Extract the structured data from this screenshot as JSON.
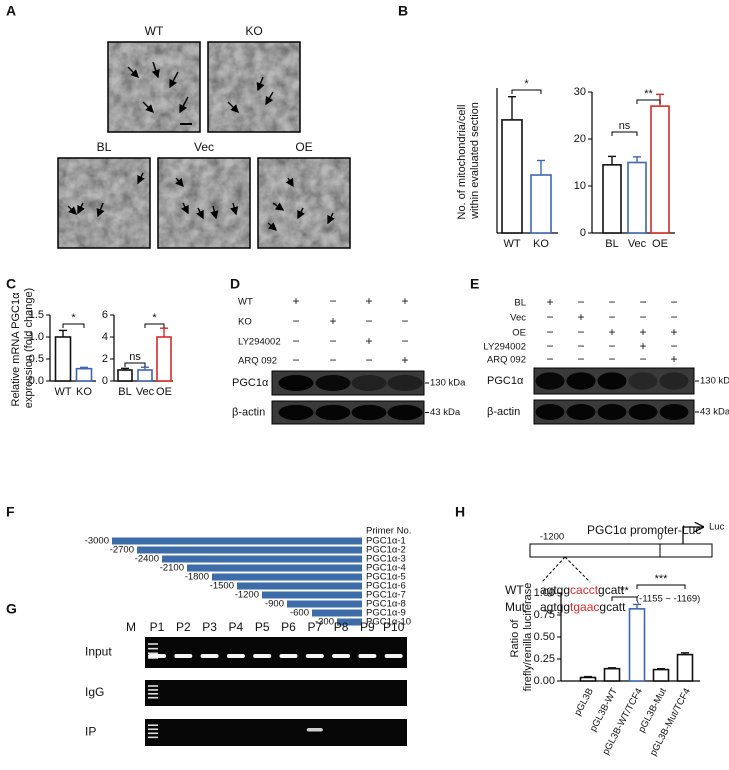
{
  "panel_labels": [
    "A",
    "B",
    "C",
    "D",
    "E",
    "F",
    "G",
    "H"
  ],
  "micrographs": {
    "labels": [
      "WT",
      "KO",
      "BL",
      "Vec",
      "OE"
    ]
  },
  "chart_data": [
    {
      "type": "bar",
      "ylabel": "No. of mitochondria/cell within evaluated section",
      "categories": [
        "WT",
        "KO"
      ],
      "values": [
        19.5,
        10
      ],
      "errors": [
        4,
        2.5
      ],
      "colors": [
        "#111111",
        "#3f67b1"
      ],
      "ylim": [
        0,
        25
      ],
      "annotations": [
        "*"
      ]
    },
    {
      "type": "bar",
      "categories": [
        "BL",
        "Vec",
        "OE"
      ],
      "values": [
        14.5,
        15,
        27
      ],
      "errors": [
        1.8,
        1.2,
        2.5
      ],
      "colors": [
        "#111111",
        "#3f67b1",
        "#d62b2b"
      ],
      "ylim": [
        0,
        30
      ],
      "yticks": [
        0,
        10,
        20,
        30
      ],
      "annotations": [
        "ns",
        "**"
      ]
    },
    {
      "type": "bar",
      "ylabel": "Relative mRNA PGC1α expression (fold change)",
      "categories": [
        "WT",
        "KO"
      ],
      "values": [
        1.0,
        0.28
      ],
      "errors": [
        0.15,
        0.03
      ],
      "colors": [
        "#111111",
        "#3f67b1"
      ],
      "ylim": [
        0,
        1.5
      ],
      "yticks": [
        {
          "value": 0,
          "label": "0.0"
        },
        0.5,
        {
          "value": 1,
          "label": "1.0"
        },
        1.5
      ],
      "annotations": [
        "*"
      ]
    },
    {
      "type": "bar",
      "categories": [
        "BL",
        "Vec",
        "OE"
      ],
      "values": [
        1.0,
        1.0,
        4.0
      ],
      "errors": [
        0.15,
        0.25,
        0.8
      ],
      "colors": [
        "#111111",
        "#3f67b1",
        "#d62b2b"
      ],
      "ylim": [
        0,
        6
      ],
      "yticks": [
        0,
        2,
        4,
        6
      ],
      "annotations": [
        "ns",
        "*"
      ]
    },
    {
      "type": "bar",
      "ylabel": "Ratio of firefly/renilla luciferase",
      "categories": [
        "pGL3B",
        "pGL3B-WT",
        "pGL3B-WT/TCF4",
        "pGL3B-Mut",
        "pGL3B-Mut/TCF4"
      ],
      "values": [
        0.04,
        0.14,
        0.82,
        0.13,
        0.3
      ],
      "errors": [
        0.01,
        0.01,
        0.05,
        0.01,
        0.02
      ],
      "colors": [
        "#111111",
        "#111111",
        "#3f67b1",
        "#111111",
        "#111111"
      ],
      "ylim": [
        0,
        1
      ],
      "yticks": [
        {
          "value": 0,
          "label": "0.00"
        },
        0.25,
        {
          "value": 0.5,
          "label": "0.50"
        },
        0.75,
        {
          "value": 1,
          "label": "1.00"
        }
      ],
      "annotations": [
        "**",
        "***"
      ]
    }
  ],
  "blot_d": {
    "rows": [
      "WT",
      "KO",
      "LY294002",
      "ARQ 092"
    ],
    "signs": [
      [
        "+",
        "−",
        "+",
        "+"
      ],
      [
        "−",
        "+",
        "−",
        "−"
      ],
      [
        "−",
        "−",
        "+",
        "−"
      ],
      [
        "−",
        "−",
        "−",
        "+"
      ]
    ],
    "bands": [
      "PGC1α",
      "β-actin"
    ],
    "sizes": [
      "130 kDa",
      "43 kDa"
    ]
  },
  "blot_e": {
    "rows": [
      "BL",
      "Vec",
      "OE",
      "LY294002",
      "ARQ 092"
    ],
    "signs": [
      [
        "+",
        "−",
        "−",
        "−",
        "−"
      ],
      [
        "−",
        "+",
        "−",
        "−",
        "−"
      ],
      [
        "−",
        "−",
        "+",
        "+",
        "+"
      ],
      [
        "−",
        "−",
        "−",
        "+",
        "−"
      ],
      [
        "−",
        "−",
        "−",
        "−",
        "+"
      ]
    ],
    "bands": [
      "PGC1α",
      "β-actin"
    ],
    "sizes": [
      "130 kDa",
      "43 kDa"
    ]
  },
  "primers": {
    "header": "Primer No.",
    "starts": [
      -3000,
      -2700,
      -2400,
      -2100,
      -1800,
      -1500,
      -1200,
      -900,
      -600,
      -300
    ],
    "names": [
      "PGC1α-1",
      "PGC1α-2",
      "PGC1α-3",
      "PGC1α-4",
      "PGC1α-5",
      "PGC1α-6",
      "PGC1α-7",
      "PGC1α-8",
      "PGC1α-9",
      "PGC1α-10"
    ]
  },
  "gel": {
    "lanes": [
      "M",
      "P1",
      "P2",
      "P3",
      "P4",
      "P5",
      "P6",
      "P7",
      "P8",
      "P9",
      "P10"
    ],
    "rows": [
      "Input",
      "IgG",
      "IP"
    ]
  },
  "promoter": {
    "title": "PGC1α promoter-Luc",
    "start": -1200,
    "end": 0,
    "reporter": "Luc",
    "rows": [
      {
        "name": "WT",
        "seq": [
          "agtgg",
          "cacct",
          "gcatt"
        ]
      },
      {
        "name": "Mut",
        "seq": [
          "agtgg",
          "tgaac",
          "gcatt"
        ]
      }
    ],
    "range": "(-1155 ~ -1169)"
  }
}
